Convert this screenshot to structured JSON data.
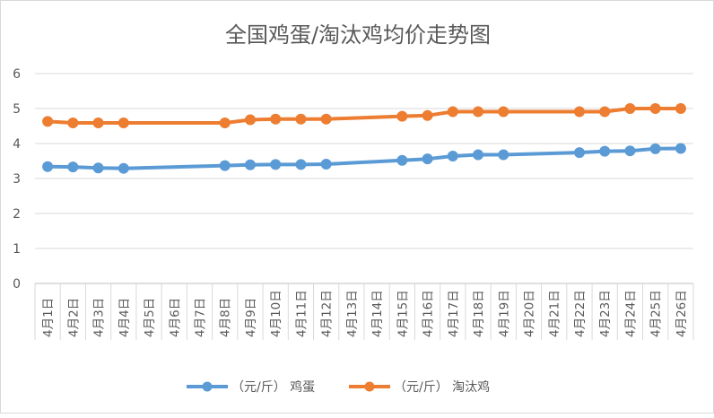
{
  "chart_data": {
    "type": "line",
    "title": "全国鸡蛋/淘汰鸡均价走势图",
    "xlabel": "",
    "ylabel": "",
    "ylim": [
      0,
      6
    ],
    "yticks": [
      0,
      1,
      2,
      3,
      4,
      5,
      6
    ],
    "grid": true,
    "legend_position": "bottom",
    "categories": [
      "4月1日",
      "4月2日",
      "4月3日",
      "4月4日",
      "4月5日",
      "4月6日",
      "4月7日",
      "4月8日",
      "4月9日",
      "4月10日",
      "4月11日",
      "4月12日",
      "4月13日",
      "4月14日",
      "4月15日",
      "4月16日",
      "4月17日",
      "4月18日",
      "4月19日",
      "4月20日",
      "4月21日",
      "4月22日",
      "4月23日",
      "4月24日",
      "4月25日",
      "4月26日"
    ],
    "series": [
      {
        "name": "（元/斤） 鸡蛋",
        "color": "#5b9bd5",
        "values": [
          3.34,
          3.33,
          3.3,
          3.29,
          null,
          null,
          null,
          3.37,
          3.39,
          3.4,
          3.4,
          3.41,
          null,
          null,
          3.52,
          3.56,
          3.64,
          3.68,
          3.68,
          null,
          null,
          3.74,
          3.78,
          3.79,
          3.85,
          3.86
        ]
      },
      {
        "name": "（元/斤） 淘汰鸡",
        "color": "#ed7d31",
        "values": [
          4.63,
          4.59,
          4.59,
          4.59,
          null,
          null,
          null,
          4.59,
          4.68,
          4.7,
          4.7,
          4.7,
          null,
          null,
          4.78,
          4.8,
          4.91,
          4.91,
          4.91,
          null,
          null,
          4.91,
          4.91,
          5.0,
          5.0,
          5.0
        ]
      }
    ]
  }
}
